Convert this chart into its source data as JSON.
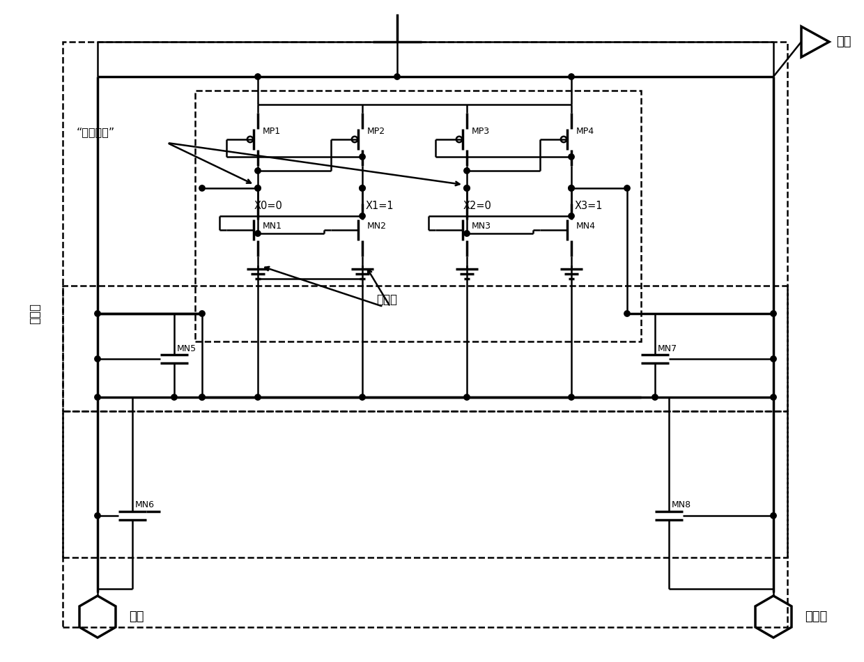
{
  "bg_color": "#ffffff",
  "lw": 1.8,
  "lw_thick": 2.5,
  "labels": {
    "disturbed": "“受到扰动”",
    "high_level": "高电平",
    "low_level": "低电平",
    "word_line": "字线",
    "bit_line": "位线",
    "bit_line_bar": "位线非",
    "MP1": "MP1",
    "MP2": "MP2",
    "MP3": "MP3",
    "MP4": "MP4",
    "MN1": "MN1",
    "MN2": "MN2",
    "MN3": "MN3",
    "MN4": "MN4",
    "MN5": "MN5",
    "MN6": "MN6",
    "MN7": "MN7",
    "MN8": "MN8",
    "X0": "X0=0",
    "X1": "X1=1",
    "X2": "X2=0",
    "X3": "X3=1"
  }
}
